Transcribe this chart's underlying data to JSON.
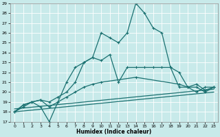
{
  "xlabel": "Humidex (Indice chaleur)",
  "bg_color": "#c8eaea",
  "grid_color": "#ffffff",
  "line_color": "#1a7070",
  "xlim": [
    -0.5,
    23.5
  ],
  "ylim": [
    17,
    29
  ],
  "xticks": [
    0,
    1,
    2,
    3,
    4,
    5,
    6,
    7,
    8,
    9,
    10,
    11,
    12,
    13,
    14,
    15,
    16,
    17,
    18,
    19,
    20,
    21,
    22,
    23
  ],
  "yticks": [
    17,
    18,
    19,
    20,
    21,
    22,
    23,
    24,
    25,
    26,
    27,
    28,
    29
  ],
  "line1_x": [
    0,
    1,
    2,
    3,
    4,
    5,
    6,
    7,
    8,
    9,
    10,
    11,
    12,
    13,
    14,
    15,
    16,
    17,
    18,
    19,
    20,
    21,
    22,
    23
  ],
  "line1_y": [
    18.0,
    18.7,
    19.0,
    18.5,
    17.0,
    19.0,
    21.0,
    22.5,
    23.0,
    23.5,
    26.0,
    25.5,
    25.0,
    26.0,
    29.0,
    28.0,
    26.5,
    26.0,
    22.5,
    22.0,
    20.5,
    20.0,
    20.5,
    20.5
  ],
  "line2_x": [
    0,
    1,
    2,
    3,
    4,
    5,
    6,
    7,
    8,
    9,
    10,
    11,
    12,
    13,
    14,
    15,
    16,
    17,
    18,
    19,
    20,
    21,
    22,
    23
  ],
  "line2_y": [
    18.0,
    18.5,
    19.0,
    19.2,
    19.0,
    19.5,
    20.0,
    21.0,
    23.0,
    23.5,
    23.2,
    23.8,
    21.0,
    22.5,
    22.5,
    22.5,
    22.5,
    22.5,
    22.5,
    20.5,
    20.5,
    20.5,
    20.0,
    20.5
  ],
  "line3_x": [
    0,
    1,
    2,
    3,
    4,
    5,
    6,
    7,
    8,
    9,
    10,
    14,
    19,
    20,
    21,
    22,
    23
  ],
  "line3_y": [
    18.0,
    18.7,
    19.0,
    19.2,
    18.5,
    19.0,
    19.5,
    20.0,
    20.5,
    20.8,
    21.0,
    21.5,
    20.8,
    20.5,
    20.8,
    20.2,
    20.5
  ],
  "line4_x": [
    0,
    23
  ],
  "line4_y": [
    18.3,
    20.3
  ],
  "line5_x": [
    0,
    23
  ],
  "line5_y": [
    18.0,
    20.0
  ]
}
